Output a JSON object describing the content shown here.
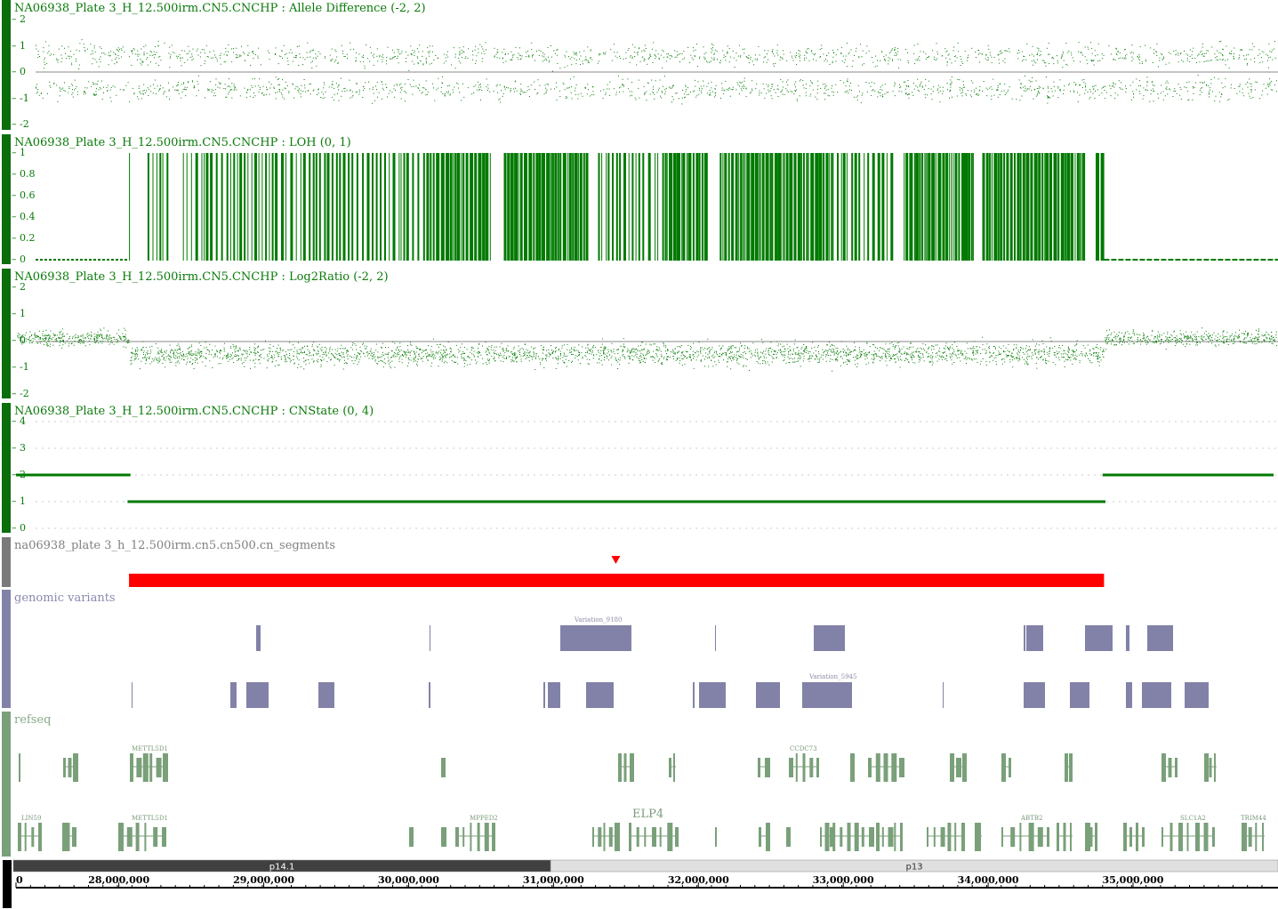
{
  "colors": {
    "data_green": "#007a00",
    "sidebar_green": "#0a6e0a",
    "segment_red": "#ff0000",
    "variant_purple": "#8282a8",
    "refseq_green": "#7aa07a",
    "band_dark": "#404040",
    "band_light": "#e0e0e0"
  },
  "tracks": {
    "allele": {
      "title": "NA06938_Plate 3_H_12.500irm.CN5.CNCHP : Allele Difference (-2, 2)",
      "ticks": [
        "2",
        "1",
        "0",
        "-1",
        "-2"
      ]
    },
    "loh": {
      "title": "NA06938_Plate 3_H_12.500irm.CN5.CNCHP : LOH (0, 1)",
      "ticks": [
        "1",
        "0.8",
        "0.6",
        "0.4",
        "0.2",
        "0"
      ]
    },
    "log2": {
      "title": "NA06938_Plate 3_H_12.500irm.CN5.CNCHP : Log2Ratio (-2, 2)",
      "ticks": [
        "2",
        "1",
        "0",
        "-1",
        "-2"
      ]
    },
    "cnstate": {
      "title": "NA06938_Plate 3_H_12.500irm.CN5.CNCHP : CNState (0, 4)",
      "ticks": [
        "4",
        "3",
        "2",
        "1",
        "0"
      ],
      "segments": [
        {
          "start_bp": 27290000,
          "end_bp": 28080000,
          "state": 2
        },
        {
          "start_bp": 28060000,
          "end_bp": 34810000,
          "state": 1
        },
        {
          "start_bp": 34790000,
          "end_bp": 35970000,
          "state": 2
        }
      ]
    },
    "segments": {
      "title": "na06938_plate 3_h_12.500irm.cn5.cn500.cn_segments",
      "bar": {
        "start_bp": 28070000,
        "end_bp": 34800000
      },
      "marker_bp": 31430000
    },
    "variants": {
      "title": "genomic variants",
      "labels": [
        "Variation_9180",
        "Variation_5945"
      ]
    },
    "refseq": {
      "title": "refseq",
      "gene_labels": [
        "METTL5D1",
        "CCDC73",
        "LIN59",
        "METTL5D1",
        "MPPED2",
        "ELP4",
        "ABTB2",
        "SLC1A2",
        "TRIM44"
      ]
    }
  },
  "ideogram": {
    "bands": [
      {
        "name": "p14.1",
        "start_bp": 27290000,
        "end_bp": 30980000
      },
      {
        "name": "p13",
        "start_bp": 30980000,
        "end_bp": 35970000
      }
    ]
  },
  "ruler": {
    "start_bp": 27290000,
    "end_bp": 35970000,
    "labels": [
      "0",
      "28,000,000",
      "29,000,000",
      "30,000,000",
      "31,000,000",
      "32,000,000",
      "33,000,000",
      "34,000,000",
      "35,000,000"
    ],
    "label_bp": [
      27290000,
      28000000,
      29000000,
      30000000,
      31000000,
      32000000,
      33000000,
      34000000,
      35000000
    ]
  }
}
